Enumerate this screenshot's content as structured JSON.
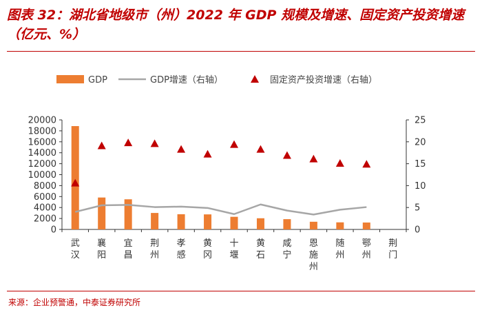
{
  "title": "图表 32：湖北省地级市（州）2022 年 GDP 规模及增速、固定资产投资增速（亿元、%）",
  "source": "来源：企业预警通，中泰证券研究所",
  "colors": {
    "gdp_bar": "#ed7d31",
    "gdp_growth_line": "#a6a6a6",
    "fai_marker": "#c00000",
    "accent": "#c00000"
  },
  "chart_data": {
    "type": "bar",
    "title": "湖北省地级市（州）2022 年 GDP 规模及增速、固定资产投资增速",
    "categories": [
      "武汉",
      "襄阳",
      "宜昌",
      "荆州",
      "孝感",
      "黄冈",
      "十堰",
      "黄石",
      "咸宁",
      "恩施州",
      "随州",
      "鄂州",
      "荆门"
    ],
    "series": [
      {
        "name": "GDP",
        "kind": "bar",
        "axis": "left",
        "values": [
          18866,
          5827,
          5502,
          3008,
          2777,
          2747,
          2305,
          2041,
          1875,
          1403,
          1294,
          1263,
          null
        ]
      },
      {
        "name": "GDP增速（右轴）",
        "kind": "line",
        "axis": "right",
        "values": [
          4.0,
          5.5,
          5.6,
          5.1,
          5.2,
          4.9,
          3.5,
          5.7,
          4.3,
          3.4,
          4.5,
          5.1,
          null
        ]
      },
      {
        "name": "固定资产投资增速（右轴）",
        "kind": "marker",
        "axis": "right",
        "values": [
          10.6,
          19.1,
          19.8,
          19.6,
          18.3,
          17.2,
          19.4,
          18.3,
          16.9,
          16.1,
          15.1,
          14.9,
          null
        ]
      }
    ],
    "left_axis": {
      "min": 0,
      "max": 20000,
      "step": 2000,
      "tick_labels": [
        "0",
        "2000",
        "4000",
        "6000",
        "8000",
        "10000",
        "12000",
        "14000",
        "16000",
        "18000",
        "20000"
      ]
    },
    "right_axis": {
      "min": 0,
      "max": 25,
      "step": 5,
      "tick_labels": [
        "0",
        "5",
        "10",
        "15",
        "20",
        "25"
      ]
    },
    "legend": [
      "GDP",
      "GDP增速（右轴）",
      "固定资产投资增速（右轴）"
    ],
    "legend_position": "top",
    "grid": false
  }
}
